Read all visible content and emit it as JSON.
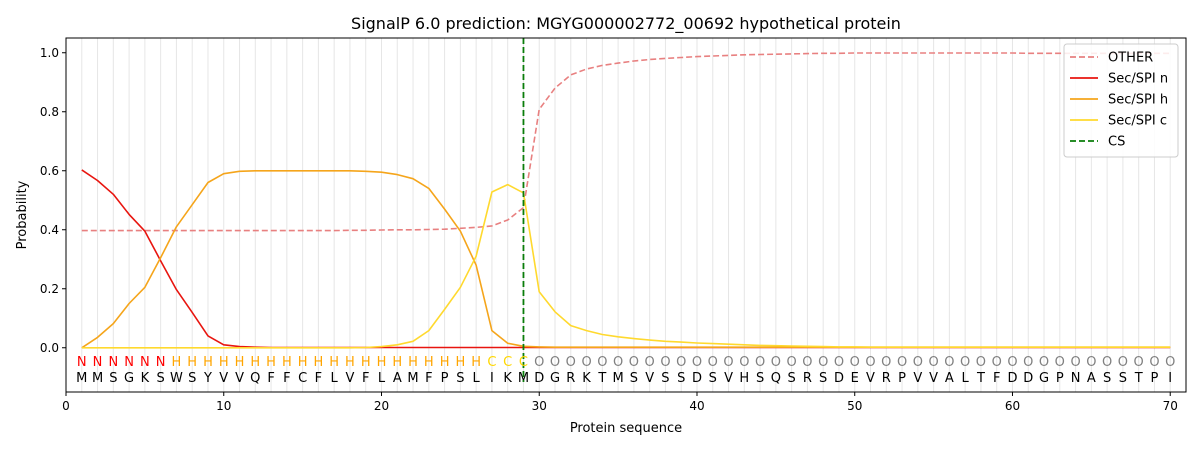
{
  "chart_data": {
    "type": "line",
    "title": "SignalP 6.0 prediction: MGYG000002772_00692 hypothetical protein",
    "xlabel": "Protein sequence",
    "ylabel": "Probability",
    "xlim": [
      0,
      71
    ],
    "ylim": [
      -0.15,
      1.05
    ],
    "x_ticks": [
      0,
      10,
      20,
      30,
      40,
      50,
      60,
      70
    ],
    "y_ticks": [
      0.0,
      0.2,
      0.4,
      0.6,
      0.8,
      1.0
    ],
    "x_tick_labels": [
      "0",
      "10",
      "20",
      "30",
      "40",
      "50",
      "60",
      "70"
    ],
    "y_tick_labels": [
      "0.0",
      "0.2",
      "0.4",
      "0.6",
      "0.8",
      "1.0"
    ],
    "grid": "vertical lines at each residue",
    "legend_position": "top-right",
    "sequence": [
      "M",
      "M",
      "S",
      "G",
      "K",
      "S",
      "W",
      "S",
      "Y",
      "V",
      "V",
      "Q",
      "F",
      "F",
      "C",
      "F",
      "L",
      "V",
      "F",
      "L",
      "A",
      "M",
      "F",
      "P",
      "S",
      "L",
      "I",
      "K",
      "M",
      "D",
      "G",
      "R",
      "K",
      "T",
      "M",
      "S",
      "V",
      "S",
      "S",
      "D",
      "S",
      "V",
      "H",
      "S",
      "Q",
      "S",
      "R",
      "S",
      "D",
      "E",
      "V",
      "R",
      "P",
      "V",
      "V",
      "A",
      "L",
      "T",
      "F",
      "D",
      "D",
      "G",
      "P",
      "N",
      "A",
      "S",
      "S",
      "T",
      "P",
      "I"
    ],
    "region_labels": [
      "N",
      "N",
      "N",
      "N",
      "N",
      "N",
      "H",
      "H",
      "H",
      "H",
      "H",
      "H",
      "H",
      "H",
      "H",
      "H",
      "H",
      "H",
      "H",
      "H",
      "H",
      "H",
      "H",
      "H",
      "H",
      "H",
      "C",
      "C",
      "C",
      "O",
      "O",
      "O",
      "O",
      "O",
      "O",
      "O",
      "O",
      "O",
      "O",
      "O",
      "O",
      "O",
      "O",
      "O",
      "O",
      "O",
      "O",
      "O",
      "O",
      "O",
      "O",
      "O",
      "O",
      "O",
      "O",
      "O",
      "O",
      "O",
      "O",
      "O",
      "O",
      "O",
      "O",
      "O",
      "O",
      "O",
      "O",
      "O",
      "O",
      "O"
    ],
    "region_colors": {
      "N": "#ff0000",
      "H": "#ffa500",
      "C": "#ffd700",
      "O": "#808080"
    },
    "cleavage_site": 29,
    "series": [
      {
        "name": "OTHER",
        "color": "#e88080",
        "style": "dashed",
        "values": [
          0.397,
          0.397,
          0.397,
          0.397,
          0.397,
          0.397,
          0.397,
          0.397,
          0.397,
          0.397,
          0.397,
          0.397,
          0.397,
          0.397,
          0.397,
          0.397,
          0.397,
          0.398,
          0.398,
          0.399,
          0.4,
          0.4,
          0.401,
          0.402,
          0.405,
          0.408,
          0.413,
          0.433,
          0.475,
          0.808,
          0.88,
          0.925,
          0.945,
          0.957,
          0.965,
          0.972,
          0.977,
          0.981,
          0.984,
          0.987,
          0.989,
          0.991,
          0.993,
          0.994,
          0.995,
          0.996,
          0.997,
          0.998,
          0.998,
          0.999,
          0.999,
          0.999,
          0.999,
          0.999,
          0.999,
          0.999,
          0.999,
          0.999,
          0.999,
          0.999,
          0.998,
          0.998,
          0.998,
          0.998,
          0.998,
          0.998,
          0.998,
          0.998,
          0.998,
          0.998
        ]
      },
      {
        "name": "Sec/SPI n",
        "color": "#e8150f",
        "style": "solid",
        "values": [
          0.603,
          0.567,
          0.52,
          0.452,
          0.395,
          0.295,
          0.197,
          0.12,
          0.04,
          0.01,
          0.004,
          0.002,
          0.001,
          0.001,
          0.001,
          0.001,
          0.001,
          0.001,
          0.001,
          0.001,
          0.001,
          0.001,
          0.001,
          0.001,
          0.001,
          0.001,
          0.001,
          0.001,
          0.001,
          0.001,
          0.001,
          0.001,
          0.001,
          0.001,
          0.001,
          0.001,
          0.001,
          0.001,
          0.001,
          0.001,
          0.001,
          0.001,
          0.001,
          0.001,
          0.001,
          0.001,
          0.001,
          0.001,
          0.001,
          0.001,
          0.001,
          0.001,
          0.001,
          0.001,
          0.001,
          0.001,
          0.001,
          0.001,
          0.001,
          0.001,
          0.001,
          0.001,
          0.001,
          0.001,
          0.001,
          0.001,
          0.001,
          0.001,
          0.001,
          0.001
        ]
      },
      {
        "name": "Sec/SPI h",
        "color": "#f5a51b",
        "style": "solid",
        "values": [
          0.0,
          0.035,
          0.082,
          0.15,
          0.205,
          0.305,
          0.41,
          0.485,
          0.56,
          0.59,
          0.598,
          0.6,
          0.6,
          0.6,
          0.6,
          0.6,
          0.6,
          0.6,
          0.598,
          0.595,
          0.587,
          0.573,
          0.54,
          0.47,
          0.395,
          0.28,
          0.058,
          0.015,
          0.005,
          0.003,
          0.002,
          0.002,
          0.002,
          0.002,
          0.002,
          0.002,
          0.002,
          0.002,
          0.002,
          0.002,
          0.002,
          0.002,
          0.002,
          0.002,
          0.002,
          0.002,
          0.002,
          0.002,
          0.002,
          0.002,
          0.002,
          0.002,
          0.002,
          0.002,
          0.002,
          0.002,
          0.002,
          0.002,
          0.002,
          0.002,
          0.002,
          0.002,
          0.002,
          0.002,
          0.002,
          0.002,
          0.002,
          0.002,
          0.002,
          0.002
        ]
      },
      {
        "name": "Sec/SPI c",
        "color": "#ffd92e",
        "style": "solid",
        "values": [
          0.0,
          0.0,
          0.0,
          0.0,
          0.0,
          0.0,
          0.0,
          0.0,
          0.0,
          0.0,
          0.0,
          0.0,
          0.0,
          0.0,
          0.0,
          0.0,
          0.0,
          0.0,
          0.001,
          0.004,
          0.01,
          0.022,
          0.058,
          0.13,
          0.205,
          0.31,
          0.528,
          0.553,
          0.525,
          0.19,
          0.122,
          0.075,
          0.058,
          0.045,
          0.037,
          0.031,
          0.026,
          0.022,
          0.019,
          0.016,
          0.014,
          0.012,
          0.01,
          0.008,
          0.007,
          0.006,
          0.005,
          0.004,
          0.003,
          0.003,
          0.002,
          0.002,
          0.002,
          0.002,
          0.002,
          0.002,
          0.002,
          0.002,
          0.002,
          0.002,
          0.002,
          0.002,
          0.002,
          0.002,
          0.002,
          0.002,
          0.002,
          0.002,
          0.002,
          0.002
        ]
      }
    ],
    "cs_legend": {
      "name": "CS",
      "color": "#0a7d0a",
      "style": "dashed"
    }
  }
}
